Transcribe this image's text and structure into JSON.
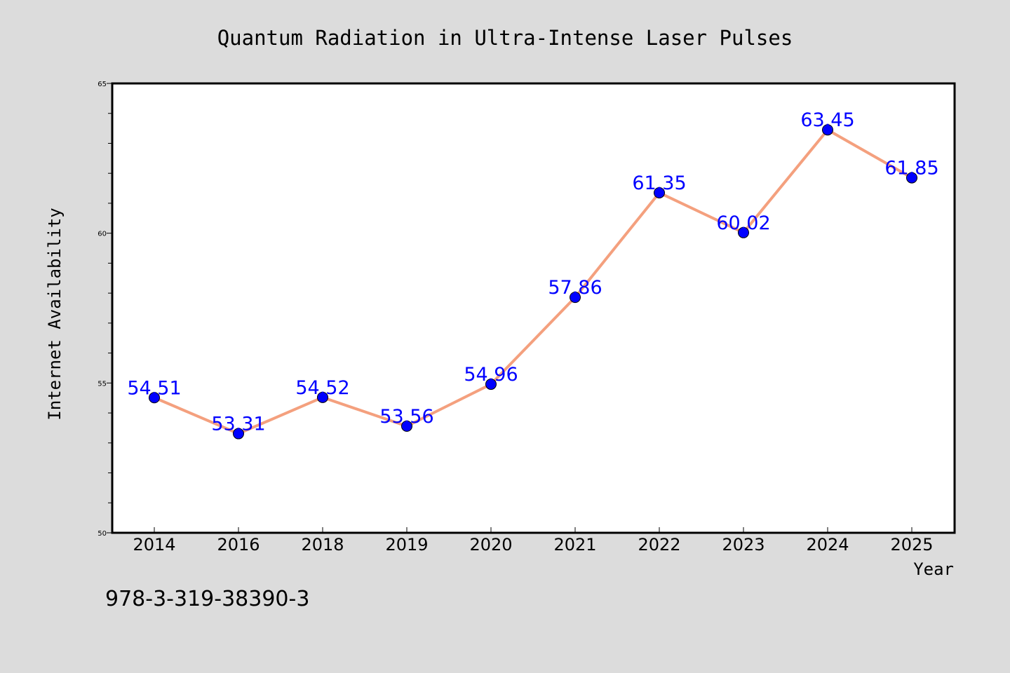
{
  "chart_data": {
    "type": "line",
    "title": "Quantum Radiation in Ultra-Intense Laser Pulses",
    "xlabel": "Year",
    "ylabel": "Internet Availability",
    "categories": [
      "2014",
      "2016",
      "2018",
      "2019",
      "2020",
      "2021",
      "2022",
      "2023",
      "2024",
      "2025"
    ],
    "series": [
      {
        "values": [
          54.51,
          53.31,
          54.52,
          53.56,
          54.96,
          57.86,
          61.35,
          60.02,
          63.45,
          61.85
        ],
        "data_labels": [
          "54.51",
          "53.31",
          "54.52",
          "53.56",
          "54.96",
          "57.86",
          "61.35",
          "60.02",
          "63.45",
          "61.85"
        ],
        "line_color": "#f4a07e",
        "marker_color": "#0000ff",
        "label_color": "#0000ff"
      }
    ],
    "ylim": [
      50,
      65
    ],
    "y_ticks": [
      "50",
      "55",
      "60",
      "65"
    ],
    "grid": false,
    "legend": "none"
  },
  "footer_text": "978-3-319-38390-3",
  "colors": {
    "background": "#dcdcdc",
    "plot_area": "#ffffff",
    "axis": "#000000"
  }
}
